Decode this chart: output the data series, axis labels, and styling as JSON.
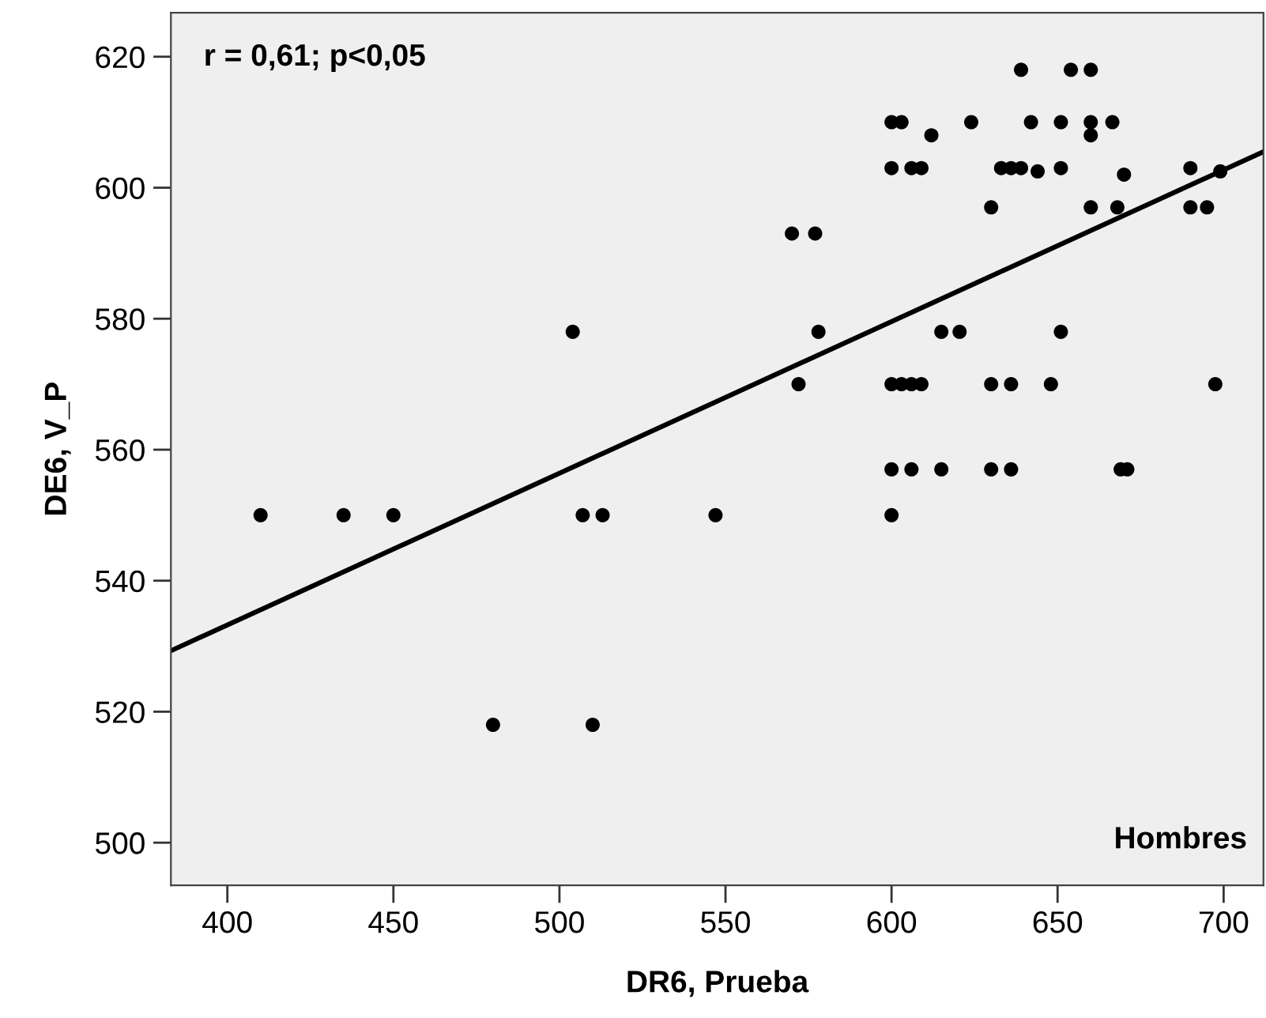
{
  "chart_data": {
    "type": "scatter",
    "xlabel": "DR6, Prueba",
    "ylabel": "DE6, V_P",
    "annotations": [
      "r = 0,61; p<0,05",
      "Hombres"
    ],
    "xlim": [
      383,
      712
    ],
    "ylim": [
      493.5,
      626.7
    ],
    "xticks": [
      400,
      450,
      500,
      550,
      600,
      650,
      700
    ],
    "yticks": [
      500,
      520,
      540,
      560,
      580,
      600,
      620
    ],
    "grid": false,
    "series": [
      {
        "color": "#000000",
        "marker": "circle",
        "x": [
          410,
          435,
          450,
          504,
          507,
          513,
          547,
          480,
          510,
          570,
          577,
          572,
          578,
          600,
          603,
          612,
          624,
          639,
          654,
          660,
          642,
          651,
          660,
          666.5,
          660,
          600,
          606,
          609,
          633,
          636,
          639,
          644,
          651,
          670,
          690,
          699,
          630,
          660,
          668,
          690,
          695,
          615,
          620.5,
          651,
          600,
          603,
          606,
          609,
          630,
          636,
          648,
          697.5,
          600,
          606,
          615,
          630,
          636,
          669,
          671,
          600
        ],
        "values": [
          550,
          550,
          550,
          578,
          550,
          550,
          550,
          518,
          518,
          593,
          593,
          570,
          578,
          610,
          610,
          608,
          610,
          618,
          618,
          618,
          610,
          610,
          610,
          610,
          608,
          603,
          603,
          603,
          603,
          603,
          603,
          602.5,
          603,
          602,
          603,
          602.5,
          597,
          597,
          597,
          597,
          597,
          578,
          578,
          578,
          570,
          570,
          570,
          570,
          570,
          570,
          570,
          570,
          557,
          557,
          557,
          557,
          557,
          557,
          557,
          550
        ]
      },
      {
        "type": "line",
        "color": "#000000",
        "line_style": "solid",
        "x": [
          383,
          712
        ],
        "values": [
          529.3,
          605.5
        ]
      }
    ]
  }
}
